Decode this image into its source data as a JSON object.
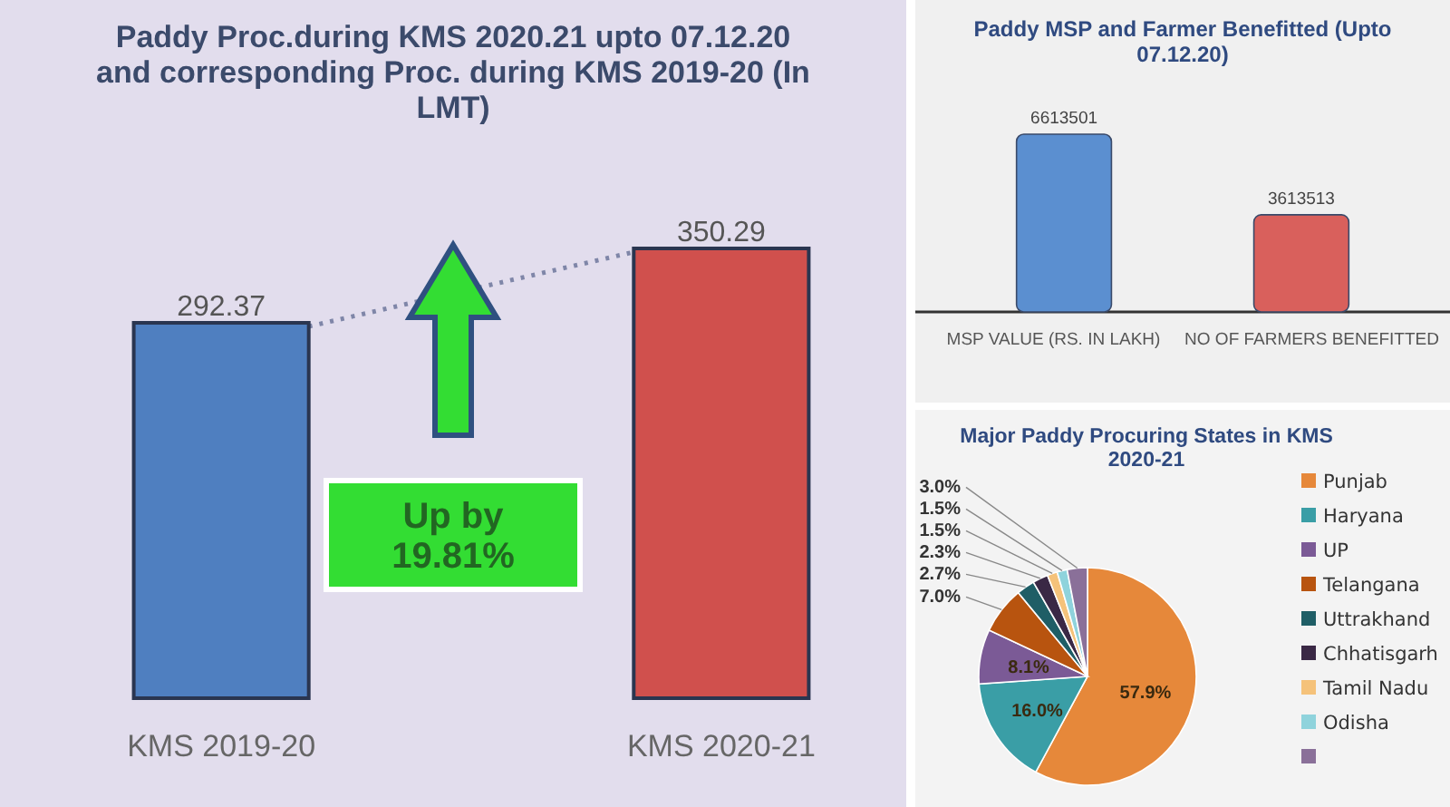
{
  "chart_data": [
    {
      "type": "bar",
      "title": "Paddy Proc.during  KMS 2020.21 upto 07.12.20 and corresponding Proc. during  KMS 2019-20  (In LMT)",
      "categories": [
        "KMS 2019-20",
        "KMS 2020-21"
      ],
      "values": [
        292.37,
        350.29
      ],
      "colors": [
        "#4f7fc0",
        "#d0504d"
      ],
      "data_labels": true,
      "annotations": [
        "Up by 19.81%"
      ]
    },
    {
      "type": "bar",
      "title": "Paddy MSP and Farmer Benefitted  (Upto 07.12.20)",
      "categories": [
        "MSP VALUE (RS. IN LAKH)",
        "NO OF FARMERS BENEFITTED"
      ],
      "values": [
        6613501,
        3613513
      ],
      "colors": [
        "#5b8fd0",
        "#d9605c"
      ],
      "data_labels": true
    },
    {
      "type": "pie",
      "title": "Major Paddy Procuring States in KMS 2020-21",
      "categories": [
        "Punjab",
        "Haryana",
        "UP",
        "Telangana",
        "Uttrakhand",
        "Chhatisgarh",
        "Tamil Nadu",
        "Odisha",
        null
      ],
      "values": [
        57.9,
        16.0,
        8.1,
        7.0,
        2.7,
        2.3,
        1.5,
        1.5,
        3.0
      ],
      "value_labels": [
        "57.9%",
        "16.0%",
        "8.1%",
        "7.0%",
        "2.7%",
        "2.3%",
        "1.5%",
        "1.5%",
        "3.0%"
      ],
      "colors": [
        "#e6883a",
        "#3a9ea6",
        "#7b5a96",
        "#b8540f",
        "#1f5e66",
        "#3a2845",
        "#f5c27a",
        "#8fd3dc",
        "#8a7099"
      ],
      "legend": "right"
    }
  ]
}
